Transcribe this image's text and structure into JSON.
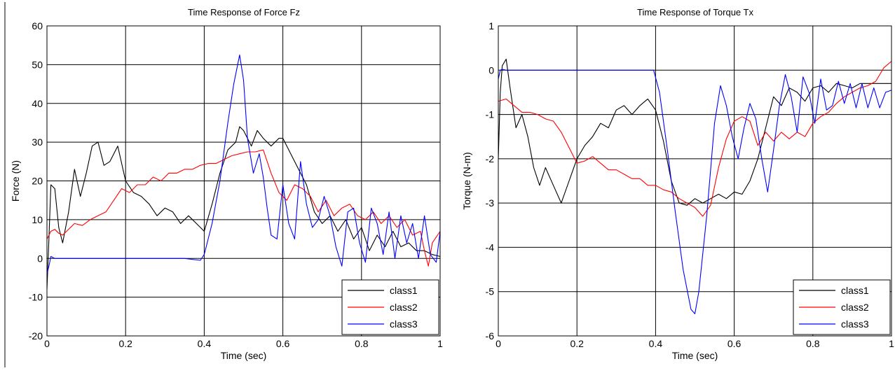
{
  "chart_data": [
    {
      "type": "line",
      "title": "Time Response of Force Fz",
      "xlabel": "Time (sec)",
      "ylabel": "Force (N)",
      "xlim": [
        0,
        1
      ],
      "ylim": [
        -20,
        60
      ],
      "xticks": [
        0,
        0.2,
        0.4,
        0.6,
        0.8,
        1
      ],
      "xtick_labels": [
        "0",
        "0.2",
        "0.4",
        "0.6",
        "0.8",
        "1"
      ],
      "yticks": [
        -20,
        -10,
        0,
        10,
        20,
        30,
        40,
        50,
        60
      ],
      "ytick_labels": [
        "-20",
        "-10",
        "0",
        "10",
        "20",
        "30",
        "40",
        "50",
        "60"
      ],
      "grid": true,
      "legend_position": "bottom-right",
      "series": [
        {
          "name": "class1",
          "color": "#000000",
          "x": [
            0,
            0.005,
            0.01,
            0.02,
            0.03,
            0.04,
            0.055,
            0.07,
            0.085,
            0.1,
            0.115,
            0.13,
            0.145,
            0.16,
            0.18,
            0.2,
            0.22,
            0.24,
            0.26,
            0.28,
            0.3,
            0.32,
            0.34,
            0.36,
            0.38,
            0.4,
            0.42,
            0.44,
            0.46,
            0.48,
            0.49,
            0.5,
            0.52,
            0.535,
            0.55,
            0.57,
            0.59,
            0.6,
            0.62,
            0.64,
            0.66,
            0.68,
            0.7,
            0.72,
            0.74,
            0.76,
            0.78,
            0.8,
            0.82,
            0.84,
            0.86,
            0.88,
            0.9,
            0.92,
            0.94,
            0.96,
            0.98,
            1.0
          ],
          "y": [
            -8,
            5,
            19,
            18,
            8,
            4,
            12,
            23,
            16,
            22,
            29,
            30,
            24,
            25,
            29,
            20,
            17,
            16,
            14,
            11,
            13,
            12,
            9,
            11,
            9,
            7,
            14,
            22,
            28,
            30,
            34,
            33,
            29,
            33,
            31,
            29,
            31,
            31,
            27,
            23,
            19,
            12,
            9,
            11,
            7,
            10,
            5,
            8,
            2,
            6,
            3,
            7,
            3,
            4,
            2,
            2,
            1,
            0.5
          ]
        },
        {
          "name": "class2",
          "color": "#ff0000",
          "x": [
            0,
            0.01,
            0.02,
            0.03,
            0.04,
            0.05,
            0.07,
            0.09,
            0.11,
            0.13,
            0.15,
            0.17,
            0.19,
            0.21,
            0.23,
            0.25,
            0.27,
            0.29,
            0.31,
            0.33,
            0.35,
            0.37,
            0.39,
            0.41,
            0.43,
            0.45,
            0.47,
            0.49,
            0.51,
            0.53,
            0.55,
            0.57,
            0.59,
            0.61,
            0.63,
            0.65,
            0.67,
            0.69,
            0.71,
            0.73,
            0.75,
            0.77,
            0.79,
            0.81,
            0.83,
            0.85,
            0.87,
            0.89,
            0.91,
            0.93,
            0.95,
            0.96,
            0.97,
            0.98,
            1.0
          ],
          "y": [
            5,
            7,
            7.5,
            6.5,
            6,
            7,
            9,
            8.5,
            10,
            11,
            12,
            15,
            18,
            17,
            19,
            19,
            21,
            20,
            22,
            22,
            23,
            23,
            24,
            24.5,
            24.5,
            25.5,
            26.5,
            27,
            27.5,
            27.5,
            28,
            22,
            17,
            15,
            19,
            18,
            16,
            12,
            15,
            11,
            13,
            14,
            11,
            10,
            12,
            9,
            11,
            8,
            10,
            6,
            7,
            2,
            -2,
            4,
            7
          ]
        },
        {
          "name": "class3",
          "color": "#0000ff",
          "x": [
            0,
            0.005,
            0.01,
            0.02,
            0.05,
            0.1,
            0.2,
            0.3,
            0.35,
            0.39,
            0.4,
            0.42,
            0.44,
            0.46,
            0.475,
            0.49,
            0.5,
            0.51,
            0.525,
            0.54,
            0.55,
            0.56,
            0.57,
            0.585,
            0.6,
            0.615,
            0.63,
            0.645,
            0.66,
            0.675,
            0.69,
            0.705,
            0.72,
            0.735,
            0.75,
            0.765,
            0.78,
            0.795,
            0.81,
            0.825,
            0.84,
            0.855,
            0.87,
            0.885,
            0.9,
            0.915,
            0.93,
            0.945,
            0.96,
            0.975,
            0.99,
            1.0
          ],
          "y": [
            -4,
            -2,
            0.5,
            0,
            0,
            0,
            0,
            0,
            0,
            -0.5,
            1,
            9,
            20,
            35,
            45,
            52.5,
            46,
            31,
            22,
            27,
            21,
            13,
            6,
            5,
            19,
            9,
            5,
            25,
            14,
            8,
            10,
            16,
            11,
            3,
            -2,
            12,
            13,
            4,
            -1,
            13,
            9,
            1,
            12,
            0,
            11,
            4,
            9,
            0,
            11,
            1,
            -1,
            7
          ]
        }
      ]
    },
    {
      "type": "line",
      "title": "Time Response of Torque Tx",
      "xlabel": "Time (sec)",
      "ylabel": "Torque (N-m)",
      "xlim": [
        0,
        1
      ],
      "ylim": [
        -6,
        1
      ],
      "xticks": [
        0,
        0.2,
        0.4,
        0.6,
        0.8,
        1
      ],
      "xtick_labels": [
        "0",
        "0.2",
        "0.4",
        "0.6",
        "0.8",
        "1"
      ],
      "yticks": [
        -6,
        -5,
        -4,
        -3,
        -2,
        -1,
        0,
        1
      ],
      "ytick_labels": [
        "-6",
        "-5",
        "-4",
        "-3",
        "-2",
        "-1",
        "0",
        "1"
      ],
      "grid": true,
      "legend_position": "bottom-right",
      "series": [
        {
          "name": "class1",
          "color": "#000000",
          "x": [
            0,
            0.005,
            0.01,
            0.02,
            0.03,
            0.045,
            0.06,
            0.075,
            0.09,
            0.105,
            0.12,
            0.14,
            0.16,
            0.18,
            0.2,
            0.22,
            0.24,
            0.26,
            0.28,
            0.3,
            0.32,
            0.34,
            0.36,
            0.38,
            0.4,
            0.42,
            0.44,
            0.46,
            0.48,
            0.5,
            0.52,
            0.54,
            0.56,
            0.58,
            0.6,
            0.62,
            0.64,
            0.66,
            0.68,
            0.7,
            0.72,
            0.74,
            0.76,
            0.78,
            0.8,
            0.82,
            0.84,
            0.86,
            0.88,
            0.9,
            0.92,
            0.94,
            0.96,
            0.98,
            1.0
          ],
          "y": [
            -2,
            -0.5,
            0.1,
            0.25,
            -0.4,
            -1.3,
            -1.0,
            -1.5,
            -2.2,
            -2.6,
            -2.2,
            -2.6,
            -3.0,
            -2.5,
            -2.0,
            -1.7,
            -1.5,
            -1.2,
            -1.3,
            -0.9,
            -0.8,
            -1.0,
            -0.8,
            -0.65,
            -0.9,
            -1.6,
            -2.5,
            -3.0,
            -3.05,
            -2.9,
            -3.0,
            -2.9,
            -2.8,
            -2.9,
            -2.75,
            -2.8,
            -2.5,
            -2.0,
            -1.3,
            -0.6,
            -0.8,
            -0.4,
            -0.5,
            -0.7,
            -0.4,
            -0.35,
            -0.5,
            -0.3,
            -0.35,
            -0.4,
            -0.3,
            -0.3,
            -0.3,
            -0.3,
            -0.3
          ]
        },
        {
          "name": "class2",
          "color": "#ff0000",
          "x": [
            0,
            0.02,
            0.04,
            0.06,
            0.08,
            0.1,
            0.12,
            0.14,
            0.16,
            0.18,
            0.2,
            0.22,
            0.24,
            0.26,
            0.28,
            0.3,
            0.32,
            0.34,
            0.36,
            0.38,
            0.4,
            0.42,
            0.44,
            0.46,
            0.48,
            0.5,
            0.52,
            0.54,
            0.56,
            0.58,
            0.6,
            0.62,
            0.64,
            0.66,
            0.68,
            0.7,
            0.72,
            0.74,
            0.76,
            0.78,
            0.8,
            0.82,
            0.84,
            0.86,
            0.88,
            0.9,
            0.92,
            0.94,
            0.96,
            0.98,
            1.0
          ],
          "y": [
            -0.7,
            -0.65,
            -0.8,
            -0.95,
            -0.95,
            -1.0,
            -1.1,
            -1.15,
            -1.4,
            -1.75,
            -2.1,
            -2.05,
            -1.95,
            -2.1,
            -2.25,
            -2.25,
            -2.35,
            -2.45,
            -2.45,
            -2.6,
            -2.6,
            -2.7,
            -2.75,
            -2.9,
            -3.0,
            -3.1,
            -3.3,
            -3.05,
            -2.2,
            -1.55,
            -1.15,
            -1.05,
            -1.15,
            -1.7,
            -1.4,
            -1.6,
            -1.4,
            -1.55,
            -1.4,
            -1.5,
            -1.2,
            -1.05,
            -0.95,
            -0.75,
            -0.6,
            -0.5,
            -0.4,
            -0.35,
            -0.25,
            0.05,
            0.2
          ]
        },
        {
          "name": "class3",
          "color": "#0000ff",
          "x": [
            0,
            0.005,
            0.01,
            0.02,
            0.05,
            0.1,
            0.2,
            0.3,
            0.35,
            0.395,
            0.41,
            0.43,
            0.45,
            0.47,
            0.49,
            0.5,
            0.51,
            0.53,
            0.55,
            0.565,
            0.58,
            0.595,
            0.61,
            0.625,
            0.64,
            0.655,
            0.67,
            0.685,
            0.7,
            0.715,
            0.73,
            0.745,
            0.76,
            0.775,
            0.79,
            0.805,
            0.82,
            0.835,
            0.85,
            0.865,
            0.88,
            0.895,
            0.91,
            0.925,
            0.94,
            0.955,
            0.97,
            0.985,
            1.0
          ],
          "y": [
            -0.2,
            0.0,
            0.02,
            0.0,
            0.0,
            0.0,
            0.0,
            0.0,
            0.0,
            0.0,
            -0.5,
            -1.8,
            -3.2,
            -4.5,
            -5.4,
            -5.5,
            -5.0,
            -3.3,
            -1.2,
            -0.35,
            -0.8,
            -1.5,
            -2.0,
            -1.3,
            -0.75,
            -1.1,
            -2.0,
            -2.75,
            -1.8,
            -0.8,
            -0.1,
            -0.6,
            -1.4,
            -0.15,
            -0.5,
            -1.2,
            -0.2,
            -0.9,
            -0.8,
            -0.25,
            -0.75,
            -0.3,
            -0.85,
            -0.3,
            -0.85,
            -0.4,
            -0.85,
            -0.5,
            -0.45
          ]
        }
      ]
    }
  ]
}
